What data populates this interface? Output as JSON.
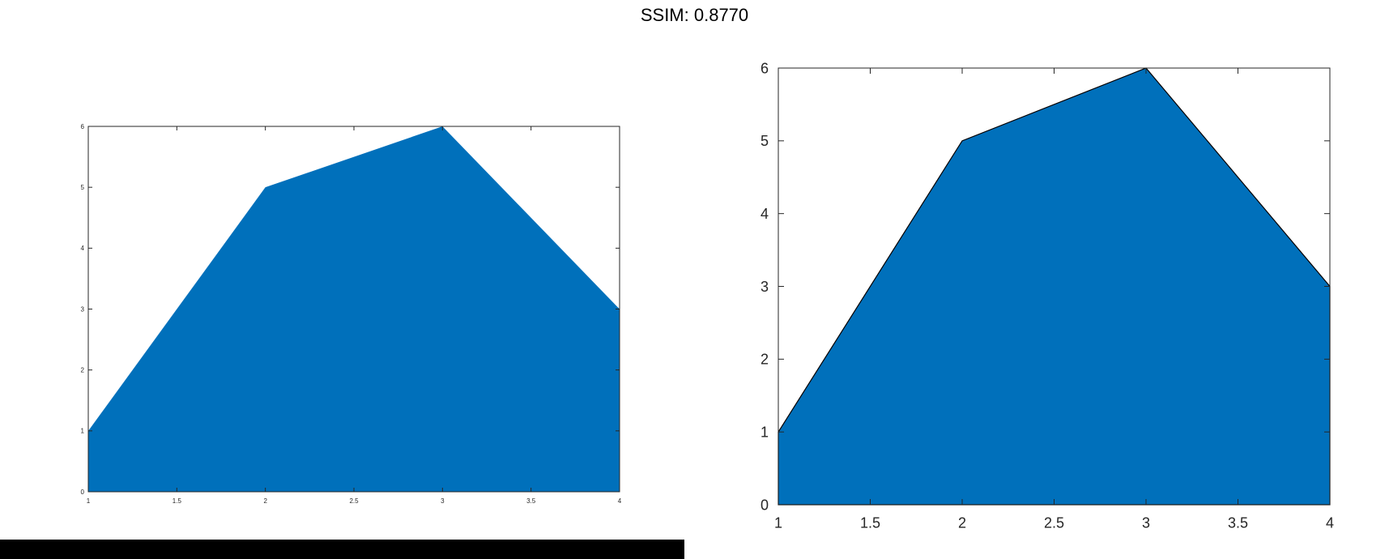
{
  "figure": {
    "title": "SSIM: 0.8770"
  },
  "colors": {
    "fill": "#0070bb",
    "axis": "#262626",
    "background": "#ffffff"
  },
  "chart_data": [
    {
      "type": "area",
      "x": [
        1,
        2,
        3,
        4
      ],
      "values": [
        1,
        5,
        6,
        3
      ],
      "xlim": [
        1,
        4
      ],
      "ylim": [
        0,
        6
      ],
      "xticks": [
        "1",
        "1.5",
        "2",
        "2.5",
        "3",
        "3.5",
        "4"
      ],
      "yticks": [
        "0",
        "1",
        "2",
        "3",
        "4",
        "5",
        "6"
      ],
      "title": "",
      "xlabel": "",
      "ylabel": "",
      "grid": false,
      "outline": false
    },
    {
      "type": "area",
      "x": [
        1,
        2,
        3,
        4
      ],
      "values": [
        1,
        5,
        6,
        3
      ],
      "xlim": [
        1,
        4
      ],
      "ylim": [
        0,
        6
      ],
      "xticks": [
        "1",
        "1.5",
        "2",
        "2.5",
        "3",
        "3.5",
        "4"
      ],
      "yticks": [
        "0",
        "1",
        "2",
        "3",
        "4",
        "5",
        "6"
      ],
      "title": "",
      "xlabel": "",
      "ylabel": "",
      "grid": false,
      "outline": true
    }
  ]
}
